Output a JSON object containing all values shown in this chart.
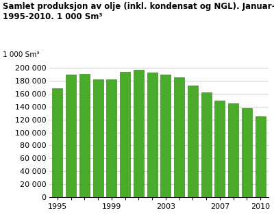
{
  "years": [
    1995,
    1996,
    1997,
    1998,
    1999,
    2000,
    2001,
    2002,
    2003,
    2004,
    2005,
    2006,
    2007,
    2008,
    2009,
    2010
  ],
  "values": [
    168000,
    189000,
    191000,
    182000,
    182000,
    194000,
    197000,
    193000,
    189000,
    185000,
    173000,
    162000,
    149000,
    145000,
    138000,
    125000
  ],
  "bar_color": "#4aab2a",
  "bar_edge_color": "#3a8a1f",
  "title_line1": "Samlet produksjon av olje (inkl. kondensat og NGL). Januar-desember",
  "title_line2": "1995-2010. 1 000 Sm³",
  "ylabel": "1 000 Sm³",
  "ylim": [
    0,
    210000
  ],
  "yticks": [
    0,
    20000,
    40000,
    60000,
    80000,
    100000,
    120000,
    140000,
    160000,
    180000,
    200000
  ],
  "xtick_labels": [
    "1995",
    "",
    "",
    "",
    "1999",
    "",
    "",
    "",
    "2003",
    "",
    "",
    "",
    "2007",
    "",
    "",
    "2010"
  ],
  "title_fontsize": 8.5,
  "axis_fontsize": 8,
  "ylabel_fontsize": 7.5,
  "background_color": "#ffffff",
  "grid_color": "#cccccc"
}
